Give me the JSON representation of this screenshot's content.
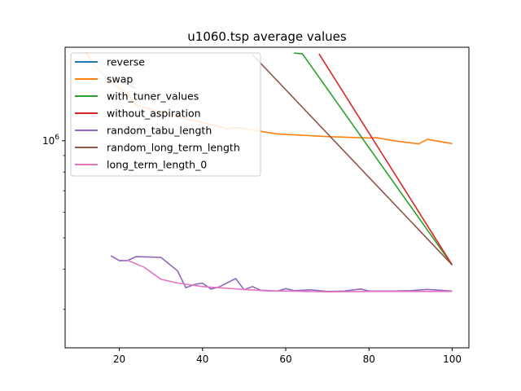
{
  "chart_data": {
    "type": "line",
    "title": "u1060.tsp average values",
    "xlabel": "",
    "ylabel": "",
    "xlim": [
      7,
      104
    ],
    "ylim": [
      228000,
      1950000
    ],
    "yscale": "log",
    "xticks": [
      20,
      40,
      60,
      80,
      100
    ],
    "ytick_major": {
      "value": 1000000,
      "label": "10^6"
    },
    "yticks_minor": [
      300000,
      400000,
      500000,
      600000,
      700000,
      800000,
      900000,
      2000000
    ],
    "grid": false,
    "legend_position": "upper left",
    "series": [
      {
        "name": "reverse",
        "color": "#1f77b4",
        "points": [
          [
            22,
            1500000.0
          ],
          [
            24,
            1450000.0
          ]
        ]
      },
      {
        "name": "swap",
        "color": "#ff7f0e",
        "points": [
          [
            12,
            1880000.0
          ],
          [
            14,
            1720000.0
          ],
          [
            18,
            1520000.0
          ],
          [
            22,
            1400000.0
          ],
          [
            24,
            1290000.0
          ],
          [
            30,
            1230000.0
          ],
          [
            36,
            1170000.0
          ],
          [
            40,
            1140000.0
          ],
          [
            46,
            1090000.0
          ],
          [
            48,
            1100000.0
          ],
          [
            58,
            1050000.0
          ],
          [
            70,
            1030000.0
          ],
          [
            80,
            1020000.0
          ],
          [
            82,
            1022000.0
          ],
          [
            86,
            1000000.0
          ],
          [
            92,
            978000.0
          ],
          [
            94,
            1010000.0
          ],
          [
            100,
            980000.0
          ]
        ]
      },
      {
        "name": "with_tuner_values",
        "color": "#2ca02c",
        "points": [
          [
            62,
            1870000.0
          ],
          [
            64,
            1860000.0
          ],
          [
            100,
            412000.0
          ]
        ]
      },
      {
        "name": "without_aspiration",
        "color": "#d62728",
        "points": [
          [
            68,
            1860000.0
          ],
          [
            100,
            412000.0
          ]
        ]
      },
      {
        "name": "random_tabu_length",
        "color": "#9467bd",
        "points": [
          [
            18,
            440000.0
          ],
          [
            20,
            425000.0
          ],
          [
            22,
            425000.0
          ],
          [
            24,
            437000.0
          ],
          [
            30,
            435000.0
          ],
          [
            34,
            395000.0
          ],
          [
            36,
            350000.0
          ],
          [
            38,
            358000.0
          ],
          [
            40,
            362000.0
          ],
          [
            42,
            347000.0
          ],
          [
            44,
            352000.0
          ],
          [
            48,
            374000.0
          ],
          [
            50,
            345000.0
          ],
          [
            52,
            353000.0
          ],
          [
            54,
            344000.0
          ],
          [
            58,
            342000.0
          ],
          [
            60,
            348000.0
          ],
          [
            62,
            343000.0
          ],
          [
            66,
            345000.0
          ],
          [
            70,
            341000.0
          ],
          [
            74,
            342000.0
          ],
          [
            78,
            347000.0
          ],
          [
            80,
            342000.0
          ],
          [
            86,
            342000.0
          ],
          [
            90,
            343000.0
          ],
          [
            94,
            346000.0
          ],
          [
            100,
            342000.0
          ]
        ]
      },
      {
        "name": "random_long_term_length",
        "color": "#8c564b",
        "points": [
          [
            52,
            1850000.0
          ],
          [
            100,
            412000.0
          ]
        ]
      },
      {
        "name": "long_term_length_0",
        "color": "#e377c2",
        "points": [
          [
            22,
            426000.0
          ],
          [
            26,
            405000.0
          ],
          [
            30,
            372000.0
          ],
          [
            34,
            362000.0
          ],
          [
            40,
            353000.0
          ],
          [
            50,
            346000.0
          ],
          [
            56,
            342000.0
          ],
          [
            60,
            342000.0
          ],
          [
            70,
            340000.0
          ],
          [
            80,
            341000.0
          ],
          [
            90,
            341000.0
          ],
          [
            100,
            341000.0
          ]
        ]
      }
    ]
  }
}
